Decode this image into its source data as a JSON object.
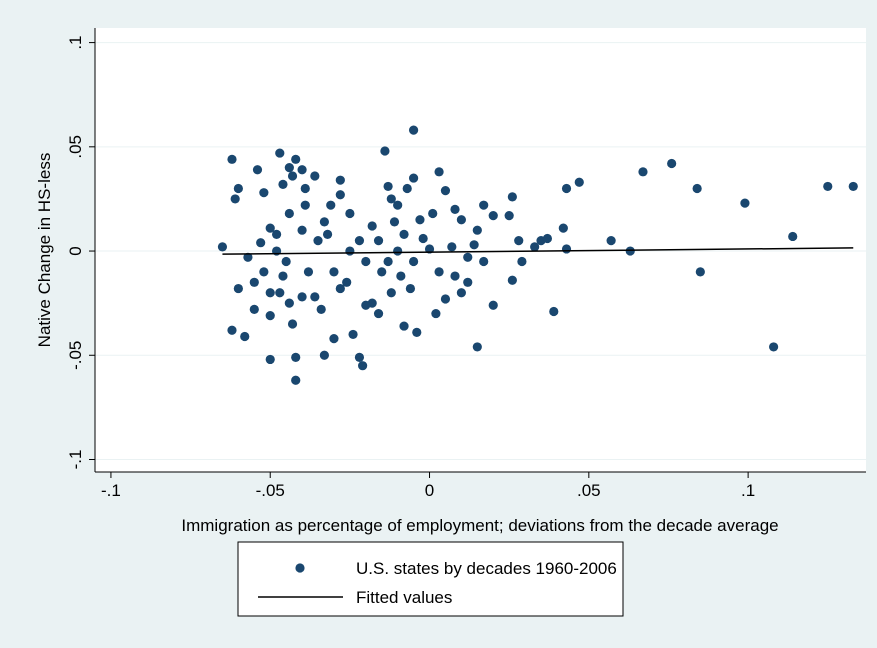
{
  "chart_data": {
    "type": "scatter",
    "x_label": "Immigration as percentage of employment; deviations from the decade average",
    "y_label": "Native Change in HS-less",
    "xlim": [
      -0.105,
      0.137
    ],
    "ylim": [
      -0.106,
      0.107
    ],
    "xticks": [
      {
        "value": -0.1,
        "label": "-.1"
      },
      {
        "value": -0.05,
        "label": "-.05"
      },
      0,
      {
        "value": 0.05,
        "label": ".05"
      },
      {
        "value": 0.1,
        "label": ".1"
      }
    ],
    "yticks": [
      {
        "value": -0.1,
        "label": "-.1"
      },
      {
        "value": -0.05,
        "label": "-.05"
      },
      0,
      {
        "value": 0.05,
        "label": ".05"
      },
      {
        "value": 0.1,
        "label": ".1"
      }
    ],
    "grid": true,
    "legend": "bottom",
    "series": [
      {
        "name": "U.S. states by decades 1960-2006",
        "type": "scatter",
        "color": "#1a476f",
        "x": [
          -0.065,
          -0.062,
          -0.06,
          -0.061,
          -0.062,
          -0.06,
          -0.058,
          -0.057,
          -0.054,
          -0.052,
          -0.05,
          -0.05,
          -0.05,
          -0.047,
          -0.046,
          -0.044,
          -0.043,
          -0.042,
          -0.04,
          -0.039,
          -0.036,
          -0.042,
          -0.042,
          -0.043,
          -0.044,
          -0.033,
          -0.03,
          -0.031,
          -0.028,
          -0.028,
          -0.025,
          -0.022,
          -0.021,
          -0.024,
          -0.018,
          -0.014,
          -0.013,
          -0.01,
          -0.007,
          -0.005,
          -0.005,
          0.003,
          0.005,
          0.008,
          0.01,
          0.015,
          0.017,
          0.02,
          0.025,
          0.026,
          0.028,
          0.033,
          0.035,
          0.037,
          0.042,
          0.043,
          0.047,
          0.043,
          0.057,
          0.063,
          0.067,
          0.076,
          0.084,
          0.085,
          0.099,
          0.108,
          0.114,
          0.125,
          0.133,
          0.015,
          0.02,
          0.039,
          0.026,
          0.029,
          -0.008,
          -0.004,
          0.002,
          0.005,
          0.01,
          0.012,
          -0.012,
          -0.015,
          -0.016,
          -0.01,
          -0.005,
          0,
          -0.02,
          -0.025,
          -0.03,
          -0.035,
          -0.038,
          -0.045,
          -0.048,
          -0.052,
          -0.055,
          -0.05,
          -0.046,
          -0.04,
          -0.036,
          -0.032,
          -0.026,
          -0.022,
          -0.018,
          -0.013,
          -0.008,
          -0.003,
          0.003,
          0.007,
          0.012,
          0.017,
          -0.011,
          -0.006,
          -0.002,
          -0.016,
          -0.02,
          -0.028,
          -0.034,
          -0.04,
          -0.047,
          -0.044,
          -0.048,
          -0.055,
          -0.053,
          -0.039,
          -0.033,
          -0.012,
          -0.009,
          0.001,
          0.008,
          0.014
        ],
        "values": [
          0.002,
          0.044,
          0.03,
          0.025,
          -0.038,
          -0.018,
          -0.041,
          -0.003,
          0.039,
          0.028,
          0.011,
          -0.052,
          -0.031,
          0.047,
          0.032,
          0.04,
          0.036,
          0.044,
          0.039,
          0.03,
          0.036,
          -0.051,
          -0.062,
          -0.035,
          -0.025,
          -0.05,
          -0.042,
          0.022,
          0.034,
          0.027,
          0.018,
          -0.051,
          -0.055,
          -0.04,
          -0.025,
          0.048,
          0.031,
          0.022,
          0.03,
          0.035,
          0.058,
          0.038,
          0.029,
          0.02,
          0.015,
          0.01,
          0.022,
          0.017,
          0.017,
          0.026,
          0.005,
          0.002,
          0.005,
          0.006,
          0.011,
          0.03,
          0.033,
          0.001,
          0.005,
          0,
          0.038,
          0.042,
          0.03,
          -0.01,
          0.023,
          -0.046,
          0.007,
          0.031,
          0.031,
          -0.046,
          -0.026,
          -0.029,
          -0.014,
          -0.005,
          -0.036,
          -0.039,
          -0.03,
          -0.023,
          -0.02,
          -0.015,
          -0.02,
          -0.01,
          0.005,
          0,
          -0.005,
          0.001,
          -0.005,
          0,
          -0.01,
          0.005,
          -0.01,
          -0.005,
          0,
          -0.01,
          -0.015,
          -0.02,
          -0.012,
          0.01,
          -0.022,
          0.008,
          -0.015,
          0.005,
          0.012,
          -0.005,
          0.008,
          0.015,
          -0.01,
          0.002,
          -0.003,
          -0.005,
          0.014,
          -0.018,
          0.006,
          -0.03,
          -0.026,
          -0.018,
          -0.028,
          -0.022,
          -0.02,
          0.018,
          0.008,
          -0.028,
          0.004,
          0.022,
          0.014,
          0.025,
          -0.012,
          0.018,
          -0.012,
          0.003
        ]
      },
      {
        "name": "Fitted values",
        "type": "line",
        "color": "#000000",
        "x": [
          -0.065,
          0.133
        ],
        "values": [
          -0.0015,
          0.0015
        ]
      }
    ]
  }
}
